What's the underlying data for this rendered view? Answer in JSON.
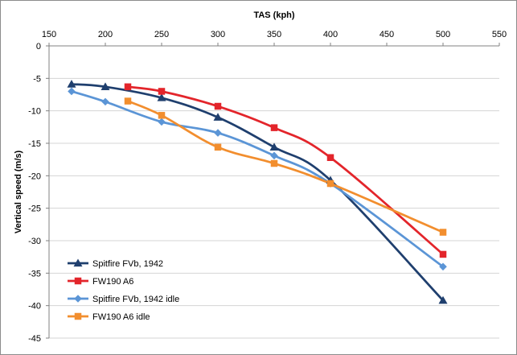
{
  "chart_data": {
    "type": "line",
    "title": "",
    "xlabel": "TAS (kph)",
    "ylabel": "Vertical speed (m/s)",
    "xlim": [
      150,
      550
    ],
    "ylim": [
      -45,
      0
    ],
    "x_ticks": [
      150,
      200,
      250,
      300,
      350,
      400,
      450,
      500,
      550
    ],
    "y_ticks": [
      0,
      -5,
      -10,
      -15,
      -20,
      -25,
      -30,
      -35,
      -40,
      -45
    ],
    "x_axis_position": "top",
    "grid": "horizontal",
    "legend_position": "bottom-left",
    "series": [
      {
        "name": "Spitfire FVb, 1942",
        "color": "#1F3F6E",
        "marker": "triangle",
        "x": [
          170,
          200,
          250,
          300,
          350,
          400,
          500
        ],
        "y": [
          -5.9,
          -6.3,
          -8.0,
          -11.0,
          -15.6,
          -20.7,
          -39.2
        ]
      },
      {
        "name": "FW190 A6",
        "color": "#E3252B",
        "marker": "square",
        "x": [
          220,
          250,
          300,
          350,
          400,
          500
        ],
        "y": [
          -6.3,
          -7.0,
          -9.3,
          -12.6,
          -17.2,
          -32.1
        ]
      },
      {
        "name": "Spitfire FVb, 1942 idle",
        "color": "#5B95D6",
        "marker": "diamond",
        "x": [
          170,
          200,
          250,
          300,
          350,
          400,
          500
        ],
        "y": [
          -7.0,
          -8.6,
          -11.7,
          -13.4,
          -16.9,
          -21.2,
          -34.0
        ]
      },
      {
        "name": "FW190 A6 idle",
        "color": "#F28E2E",
        "marker": "square",
        "x": [
          220,
          250,
          300,
          350,
          400,
          500
        ],
        "y": [
          -8.5,
          -10.7,
          -15.6,
          -18.1,
          -21.2,
          -28.7
        ]
      }
    ]
  }
}
